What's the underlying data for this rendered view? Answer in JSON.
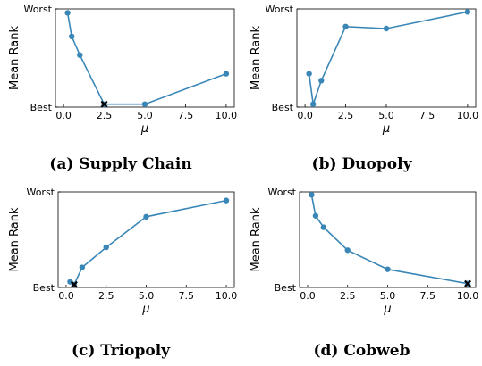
{
  "chart_data": [
    {
      "type": "line",
      "caption": "(a) Supply Chain",
      "ylabel": "Mean Rank",
      "xlabel": "μ",
      "ytick_labels": {
        "top": "Worst",
        "bottom": "Best"
      },
      "xticks": [
        "0.0",
        "2.5",
        "5.0",
        "7.5",
        "10.0"
      ],
      "xlim": [
        -0.5,
        10.5
      ],
      "ylim": [
        0,
        1
      ],
      "x": [
        0.25,
        0.5,
        1.0,
        2.5,
        5.0,
        10.0
      ],
      "y": [
        0.96,
        0.72,
        0.53,
        0.03,
        0.03,
        0.34
      ],
      "best_x": 2.5,
      "color": "#3a87b7"
    },
    {
      "type": "line",
      "caption": "(b) Duopoly",
      "ylabel": "Mean Rank",
      "xlabel": "μ",
      "ytick_labels": {
        "top": "Worst",
        "bottom": "Best"
      },
      "xticks": [
        "0.0",
        "2.5",
        "5.0",
        "7.5",
        "10.0"
      ],
      "xlim": [
        -0.5,
        10.5
      ],
      "ylim": [
        0,
        1
      ],
      "x": [
        0.25,
        0.5,
        1.0,
        2.5,
        5.0,
        10.0
      ],
      "y": [
        0.34,
        0.03,
        0.27,
        0.82,
        0.8,
        0.97
      ],
      "best_x": null,
      "color": "#3a87b7"
    },
    {
      "type": "line",
      "caption": "(c) Triopoly",
      "ylabel": "Mean Rank",
      "xlabel": "μ",
      "ytick_labels": {
        "top": "Worst",
        "bottom": "Best"
      },
      "xticks": [
        "0.0",
        "2.5",
        "5.0",
        "7.5",
        "10.0"
      ],
      "xlim": [
        -0.5,
        10.5
      ],
      "ylim": [
        0,
        1
      ],
      "x": [
        0.25,
        0.5,
        1.0,
        2.5,
        5.0,
        10.0
      ],
      "y": [
        0.06,
        0.03,
        0.21,
        0.42,
        0.74,
        0.91
      ],
      "best_x": 0.5,
      "color": "#3a87b7"
    },
    {
      "type": "line",
      "caption": "(d) Cobweb",
      "ylabel": "Mean Rank",
      "xlabel": "μ",
      "ytick_labels": {
        "top": "Worst",
        "bottom": "Best"
      },
      "xticks": [
        "0.0",
        "2.5",
        "5.0",
        "7.5",
        "10.0"
      ],
      "xlim": [
        -0.5,
        10.5
      ],
      "ylim": [
        0,
        1
      ],
      "x": [
        0.25,
        0.5,
        1.0,
        2.5,
        5.0,
        10.0
      ],
      "y": [
        0.97,
        0.75,
        0.63,
        0.39,
        0.19,
        0.04
      ],
      "best_x": 10.0,
      "color": "#3a87b7"
    }
  ]
}
